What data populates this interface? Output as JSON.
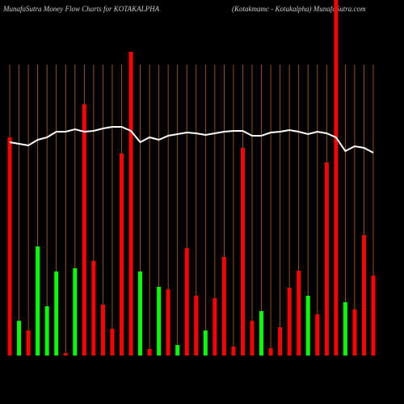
{
  "chart_data": {
    "type": "bar",
    "title": "MunafaSutra  Money Flow  Charts for KOTAKALPHA",
    "subtitle": "(Kotakmamc -  Kotakalpha) MunafaSutra.com",
    "categories": [
      null,
      null,
      null,
      null,
      null,
      null,
      null,
      null,
      null,
      null,
      null,
      null,
      null,
      null,
      null,
      null,
      null,
      null,
      null,
      null,
      null,
      null,
      null,
      null,
      null,
      null,
      null,
      null,
      null,
      null,
      null,
      null,
      null,
      null,
      null,
      null,
      null,
      null,
      null,
      null
    ],
    "values": [
      270,
      43,
      31,
      135,
      61,
      104,
      3,
      108,
      311,
      117,
      63,
      33,
      250,
      376,
      104,
      8,
      85,
      82,
      13,
      133,
      74,
      31,
      71,
      122,
      11,
      257,
      43,
      55,
      9,
      35,
      84,
      105,
      74,
      51,
      239,
      450,
      66,
      57,
      149,
      99
    ],
    "colors": [
      "#ff0000",
      "#00ff00",
      "#ff0000",
      "#00ff00",
      "#00ff00",
      "#00ff00",
      "#ff0000",
      "#00ff00",
      "#ff0000",
      "#ff0000",
      "#ff0000",
      "#ff0000",
      "#ff0000",
      "#ff0000",
      "#00ff00",
      "#ff0000",
      "#00ff00",
      "#ff0000",
      "#00ff00",
      "#ff0000",
      "#ff0000",
      "#00ff00",
      "#ff0000",
      "#ff0000",
      "#ff0000",
      "#ff0000",
      "#ff0000",
      "#00ff00",
      "#ff0000",
      "#ff0000",
      "#ff0000",
      "#ff0000",
      "#00ff00",
      "#ff0000",
      "#ff0000",
      "#ff0000",
      "#00ff00",
      "#ff0000",
      "#ff0000",
      "#ff0000"
    ],
    "line": {
      "color": "#ffffff",
      "values": [
        264,
        262,
        260,
        267,
        270,
        277,
        277,
        280,
        277,
        278,
        281,
        283,
        283,
        278,
        264,
        270,
        267,
        272,
        274,
        276,
        275,
        273,
        275,
        277,
        278,
        278,
        272,
        272,
        276,
        277,
        279,
        277,
        274,
        277,
        275,
        270,
        253,
        259,
        257,
        251
      ]
    },
    "ylim": [
      0,
      440
    ],
    "grid": true,
    "grid_color": "#b8661a"
  }
}
